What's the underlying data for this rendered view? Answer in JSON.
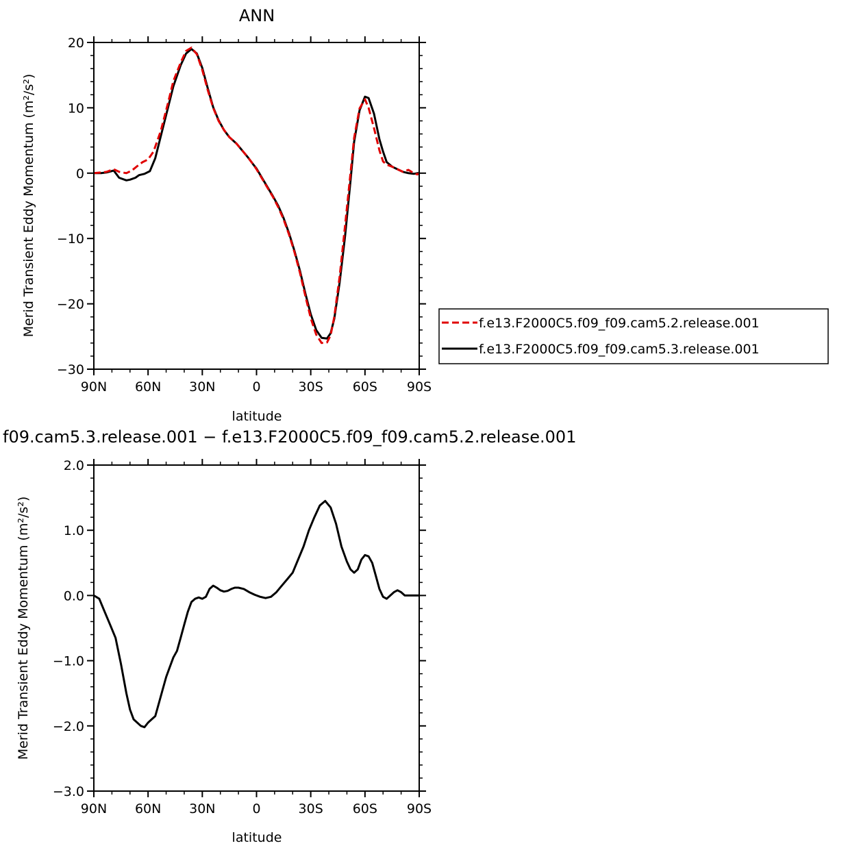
{
  "chart_data": [
    {
      "type": "line",
      "title": "ANN",
      "xlabel": "latitude",
      "ylabel": "Merid Transient Eddy Momentum (m²/s²)",
      "xlim": [
        90,
        -90
      ],
      "ylim": [
        -30,
        20
      ],
      "xticks": [
        90,
        60,
        30,
        0,
        -30,
        -60,
        -90
      ],
      "xtick_labels": [
        "90N",
        "60N",
        "30N",
        "0",
        "30S",
        "60S",
        "90S"
      ],
      "yticks": [
        20,
        10,
        0,
        -10,
        -20,
        -30
      ],
      "ytick_labels": [
        "20",
        "10",
        "0",
        "−10",
        "−20",
        "−30"
      ],
      "legend_position": "right",
      "series": [
        {
          "name": "f.e13.F2000C5.f09_f09.cam5.2.release.001",
          "color": "#e00000",
          "dash": "dashed",
          "x": [
            90,
            86,
            83,
            79,
            76,
            72,
            69,
            65,
            63,
            60,
            57,
            53,
            49,
            46,
            42,
            39,
            36,
            33,
            30,
            27,
            24,
            21,
            18,
            15,
            11,
            8,
            5,
            2,
            0,
            -3,
            -6,
            -9,
            -12,
            -15,
            -18,
            -21,
            -24,
            -27,
            -30,
            -33,
            -36,
            -39,
            -41,
            -43,
            -46,
            -49,
            -52,
            -54,
            -57,
            -60,
            -62,
            -65,
            -68,
            -70,
            -72,
            -75,
            -78,
            -81,
            -84,
            -87,
            -89,
            -90
          ],
          "y": [
            0.0,
            0.1,
            0.2,
            0.6,
            0.2,
            0.0,
            0.4,
            1.3,
            1.7,
            2.1,
            3.3,
            6.4,
            10.7,
            14.1,
            16.9,
            18.7,
            19.2,
            18.2,
            15.8,
            12.7,
            10.0,
            8.0,
            6.6,
            5.5,
            4.5,
            3.5,
            2.5,
            1.4,
            0.6,
            -0.8,
            -2.2,
            -3.6,
            -5.2,
            -7.1,
            -9.4,
            -12.1,
            -15.2,
            -18.8,
            -22.2,
            -24.7,
            -26.0,
            -25.9,
            -24.8,
            -22.0,
            -15.8,
            -8.0,
            0.0,
            5.4,
            9.9,
            11.3,
            10.0,
            6.9,
            3.5,
            1.8,
            1.3,
            1.0,
            0.6,
            0.2,
            0.5,
            0.0,
            -0.2,
            0.0
          ]
        },
        {
          "name": "f.e13.F2000C5.f09_f09.cam5.3.release.001",
          "color": "#000000",
          "dash": "solid",
          "x": [
            90,
            86,
            83,
            79,
            76,
            72,
            70,
            67,
            65,
            62,
            59,
            56,
            53,
            49,
            46,
            42,
            39,
            36,
            33,
            30,
            27,
            24,
            21,
            18,
            15,
            11,
            8,
            5,
            2,
            0,
            -3,
            -6,
            -9,
            -12,
            -15,
            -18,
            -21,
            -24,
            -27,
            -30,
            -33,
            -36,
            -39,
            -41,
            -43,
            -46,
            -49,
            -52,
            -54,
            -57,
            -60,
            -62,
            -65,
            -68,
            -70,
            -72,
            -75,
            -78,
            -81,
            -84,
            -87,
            -89,
            -90
          ],
          "y": [
            0.0,
            0.0,
            0.1,
            0.4,
            -0.7,
            -1.1,
            -1.0,
            -0.7,
            -0.3,
            -0.1,
            0.3,
            2.3,
            5.6,
            10.0,
            13.3,
            16.5,
            18.3,
            19.0,
            18.3,
            16.1,
            13.0,
            10.1,
            8.1,
            6.6,
            5.5,
            4.5,
            3.5,
            2.5,
            1.4,
            0.7,
            -0.7,
            -2.1,
            -3.5,
            -5.0,
            -6.9,
            -9.2,
            -11.9,
            -14.9,
            -18.4,
            -21.6,
            -24.0,
            -25.2,
            -25.3,
            -24.5,
            -22.3,
            -16.7,
            -9.6,
            -1.2,
            4.8,
            9.6,
            11.7,
            11.5,
            9.1,
            5.2,
            3.3,
            1.7,
            1.0,
            0.6,
            0.2,
            0.0,
            -0.1,
            0.0,
            0.0
          ]
        }
      ]
    },
    {
      "type": "line",
      "title": "f09.cam5.3.release.001 − f.e13.F2000C5.f09_f09.cam5.2.release.001",
      "xlabel": "latitude",
      "ylabel": "Merid Transient Eddy Momentum (m²/s²)",
      "xlim": [
        90,
        -90
      ],
      "ylim": [
        -3.0,
        2.0
      ],
      "xticks": [
        90,
        60,
        30,
        0,
        -30,
        -60,
        -90
      ],
      "xtick_labels": [
        "90N",
        "60N",
        "30N",
        "0",
        "30S",
        "60S",
        "90S"
      ],
      "yticks": [
        2.0,
        1.0,
        0.0,
        -1.0,
        -2.0,
        -3.0
      ],
      "ytick_labels": [
        "2.0",
        "1.0",
        "0.0",
        "−1.0",
        "−2.0",
        "−3.0"
      ],
      "series": [
        {
          "color": "#000000",
          "dash": "solid",
          "x": [
            90,
            87,
            84,
            81,
            78,
            75,
            72,
            70,
            68,
            66,
            64,
            62,
            60,
            58,
            56,
            54,
            52,
            50,
            48,
            46,
            44,
            42,
            40,
            38,
            36,
            34,
            32,
            30,
            28,
            26,
            24,
            22,
            20,
            18,
            16,
            14,
            12,
            10,
            7,
            4,
            1,
            -2,
            -5,
            -8,
            -11,
            -14,
            -17,
            -20,
            -23,
            -26,
            -29,
            -32,
            -35,
            -38,
            -41,
            -44,
            -47,
            -50,
            -52,
            -54,
            -56,
            -58,
            -60,
            -62,
            -64,
            -66,
            -68,
            -70,
            -72,
            -74,
            -76,
            -78,
            -80,
            -82,
            -84,
            -86,
            -88,
            -90
          ],
          "y": [
            0.0,
            -0.05,
            -0.25,
            -0.45,
            -0.65,
            -1.05,
            -1.5,
            -1.75,
            -1.9,
            -1.95,
            -2.0,
            -2.02,
            -1.95,
            -1.9,
            -1.85,
            -1.65,
            -1.45,
            -1.25,
            -1.1,
            -0.95,
            -0.85,
            -0.65,
            -0.45,
            -0.25,
            -0.1,
            -0.05,
            -0.03,
            -0.05,
            -0.02,
            0.1,
            0.15,
            0.12,
            0.08,
            0.06,
            0.07,
            0.1,
            0.12,
            0.12,
            0.1,
            0.05,
            0.01,
            -0.02,
            -0.04,
            -0.02,
            0.05,
            0.15,
            0.25,
            0.35,
            0.55,
            0.75,
            1.0,
            1.2,
            1.38,
            1.45,
            1.35,
            1.1,
            0.75,
            0.52,
            0.4,
            0.35,
            0.4,
            0.55,
            0.62,
            0.6,
            0.5,
            0.3,
            0.1,
            -0.02,
            -0.05,
            0.0,
            0.05,
            0.08,
            0.05,
            0.0,
            0.0,
            0.0,
            0.0,
            0.0
          ]
        }
      ]
    }
  ]
}
